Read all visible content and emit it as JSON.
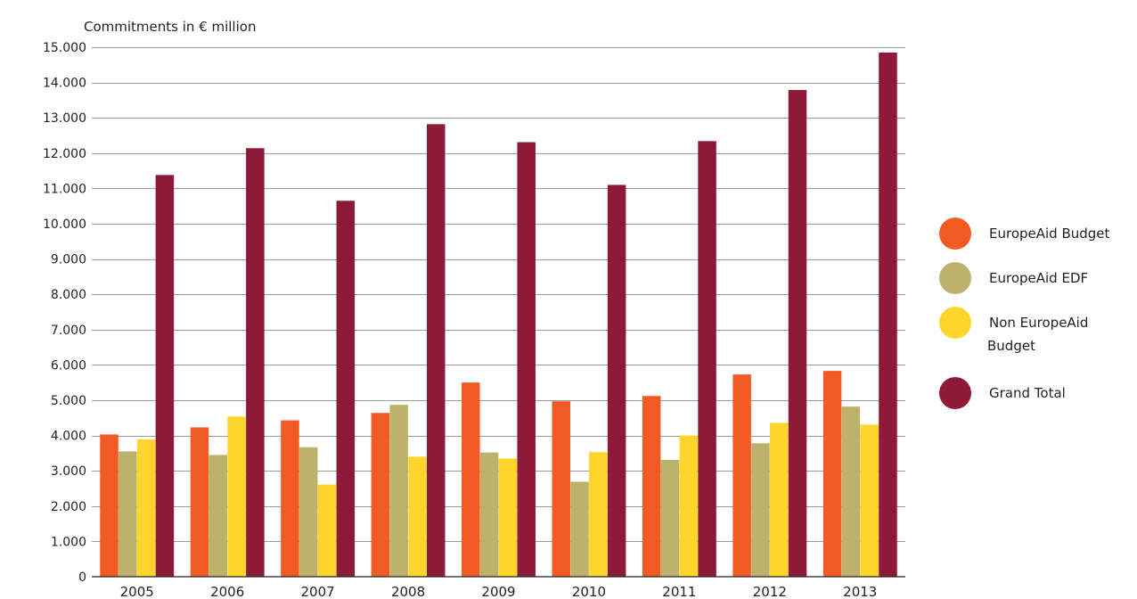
{
  "chart_data": {
    "type": "bar",
    "title": "",
    "ylabel": "Commitments in € million",
    "xlabel": "",
    "ylim": [
      0,
      15000
    ],
    "yticks": [
      0,
      1000,
      2000,
      3000,
      4000,
      5000,
      6000,
      7000,
      8000,
      9000,
      10000,
      11000,
      12000,
      13000,
      14000,
      15000
    ],
    "ytick_labels": [
      "0",
      "1.000",
      "2.000",
      "3.000",
      "4.000",
      "5.000",
      "6.000",
      "7.000",
      "8.000",
      "9.000",
      "10.000",
      "11.000",
      "12.000",
      "13.000",
      "14.000",
      "15.000"
    ],
    "grid": true,
    "legend_position": "right",
    "categories": [
      "2005",
      "2006",
      "2007",
      "2008",
      "2009",
      "2010",
      "2011",
      "2012",
      "2013"
    ],
    "series": [
      {
        "name": "EuropeAid Budget",
        "color": "#f15a22",
        "values": [
          4030,
          4230,
          4430,
          4640,
          5500,
          4970,
          5120,
          5730,
          5830
        ]
      },
      {
        "name": "EuropeAid EDF",
        "color": "#bcb26b",
        "values": [
          3550,
          3450,
          3670,
          4870,
          3520,
          2690,
          3310,
          3780,
          4820
        ]
      },
      {
        "name": "Non EuropeAid Budget",
        "name_lines": [
          "Non EuropeAid",
          "Budget"
        ],
        "color": "#ffd52b",
        "values": [
          3890,
          4540,
          2610,
          3400,
          3350,
          3530,
          4000,
          4360,
          4310
        ]
      },
      {
        "name": "Grand Total",
        "color": "#8c1a38",
        "values": [
          11380,
          12140,
          10650,
          12820,
          12310,
          11100,
          12340,
          13790,
          14850
        ]
      }
    ]
  }
}
